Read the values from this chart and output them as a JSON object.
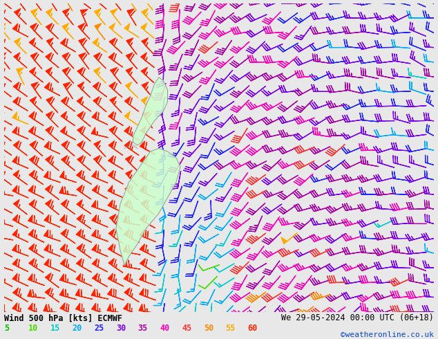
{
  "title_left": "Wind 500 hPa [kts] ECMWF",
  "title_right": "We 29-05-2024 00:00 UTC (06+18)",
  "credit": "©weatheronline.co.uk",
  "background_color": "#e8e8e8",
  "legend_values": [
    5,
    10,
    15,
    20,
    25,
    30,
    35,
    40,
    45,
    50,
    55,
    60
  ],
  "legend_colors": [
    "#00bb00",
    "#44dd00",
    "#00cccc",
    "#00aaff",
    "#2222ff",
    "#7700ee",
    "#aa00aa",
    "#ff00bb",
    "#ff3333",
    "#ff8800",
    "#ffaa00",
    "#ff2200"
  ],
  "figsize": [
    6.34,
    4.9
  ],
  "dpi": 100,
  "nx": 28,
  "ny": 22,
  "nz_land_color": "#ccffcc",
  "nz_coast_color": "#888888"
}
